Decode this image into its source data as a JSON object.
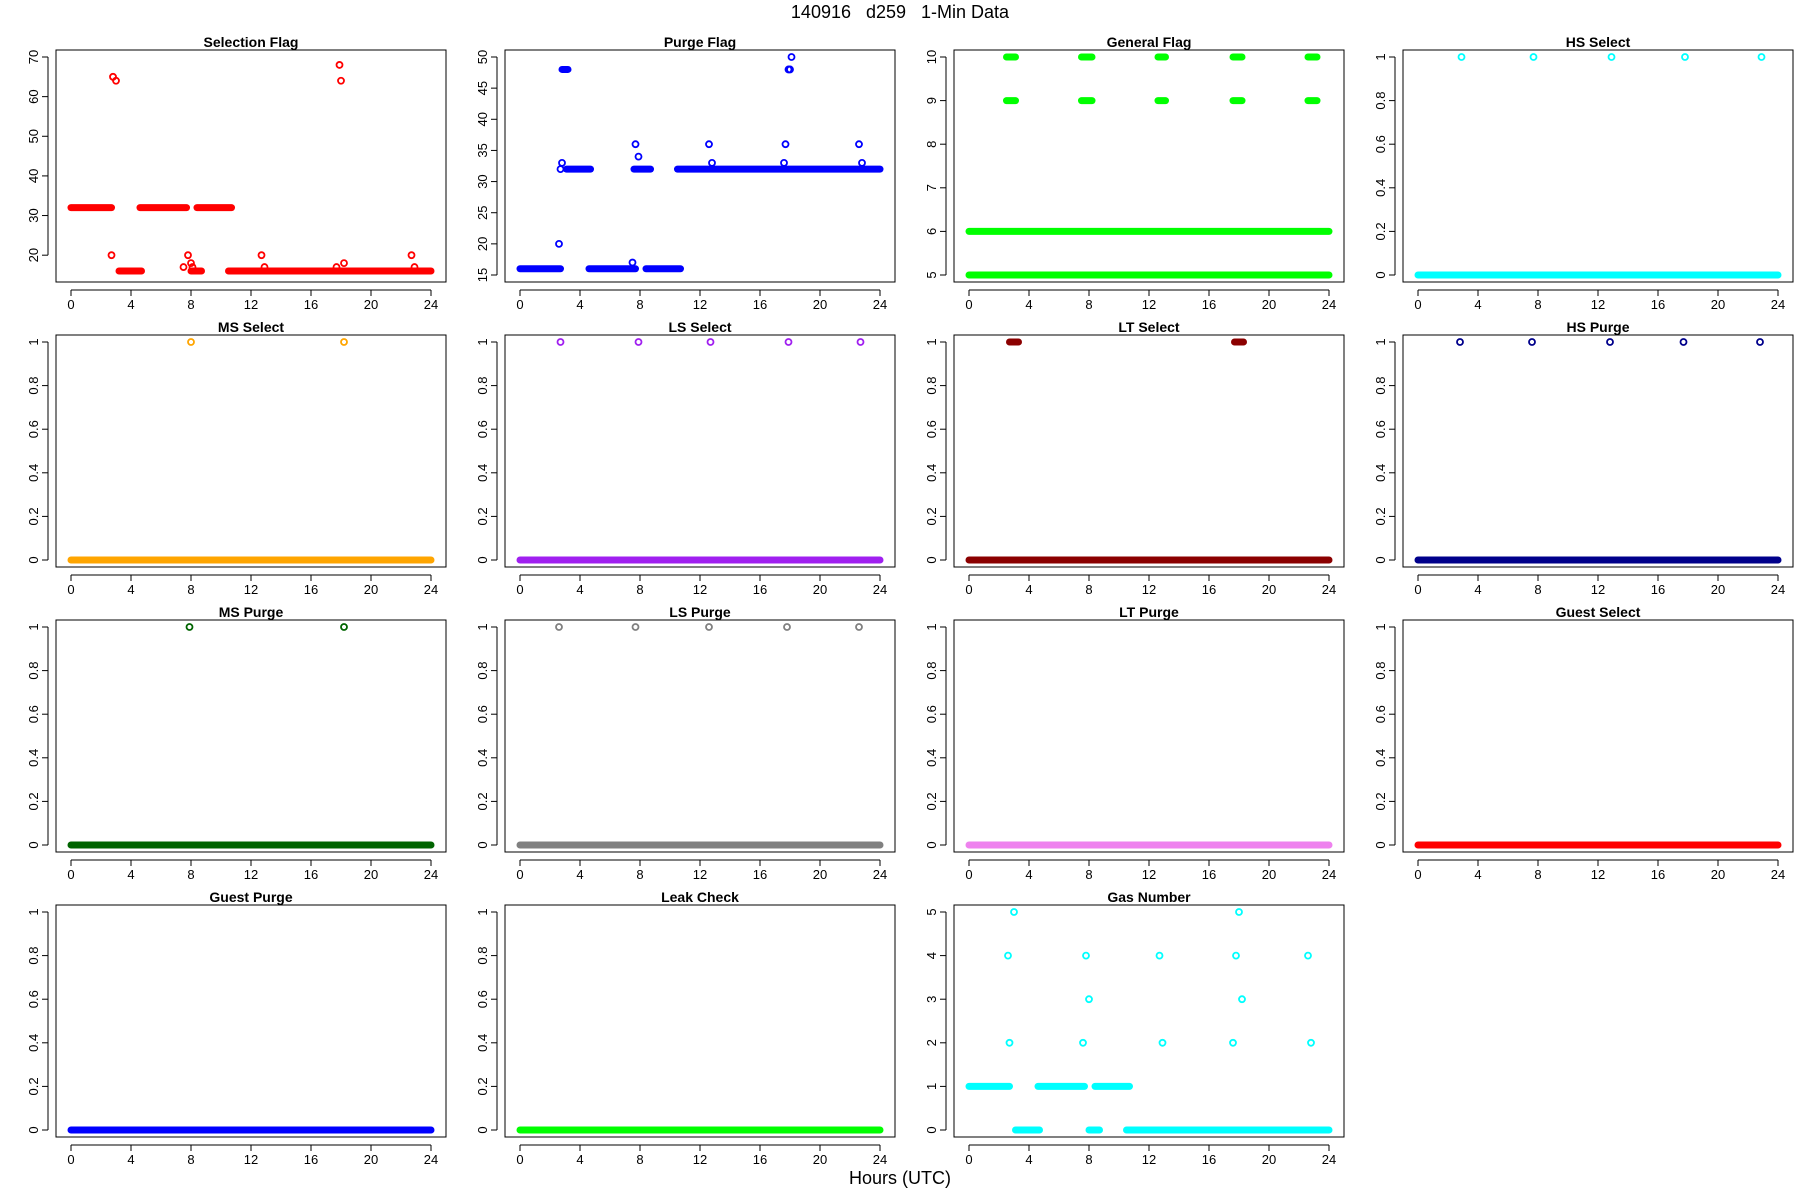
{
  "title": "140916   d259   1-Min Data",
  "xlabel": "Hours (UTC)",
  "chart_data": [
    {
      "type": "scatter",
      "title": "Selection Flag",
      "color": "#ff0000",
      "xlim": [
        0,
        24
      ],
      "ylim": [
        15,
        70
      ],
      "xticks": [
        0,
        4,
        8,
        12,
        16,
        20,
        24
      ],
      "yticks": [
        20,
        30,
        40,
        50,
        60,
        70
      ],
      "segments": [
        [
          0,
          2.7,
          32
        ],
        [
          3.2,
          4.7,
          16
        ],
        [
          4.6,
          7.7,
          32
        ],
        [
          8.0,
          8.7,
          16
        ],
        [
          8.4,
          10.7,
          32
        ],
        [
          10.5,
          24,
          16
        ]
      ],
      "points": [
        [
          2.7,
          20
        ],
        [
          2.8,
          65
        ],
        [
          3.0,
          64
        ],
        [
          7.5,
          17
        ],
        [
          7.8,
          20
        ],
        [
          8.0,
          18
        ],
        [
          8.1,
          17
        ],
        [
          12.7,
          20
        ],
        [
          12.9,
          17
        ],
        [
          17.7,
          17
        ],
        [
          17.9,
          68
        ],
        [
          18.0,
          64
        ],
        [
          18.2,
          18
        ],
        [
          22.7,
          20
        ],
        [
          22.9,
          17
        ]
      ]
    },
    {
      "type": "scatter",
      "title": "Purge Flag",
      "color": "#0000ff",
      "xlim": [
        0,
        24
      ],
      "ylim": [
        15,
        50
      ],
      "xticks": [
        0,
        4,
        8,
        12,
        16,
        20,
        24
      ],
      "yticks": [
        15,
        20,
        25,
        30,
        35,
        40,
        45,
        50
      ],
      "segments": [
        [
          0,
          2.7,
          16
        ],
        [
          2.8,
          3.2,
          48
        ],
        [
          3.1,
          4.7,
          32
        ],
        [
          4.6,
          7.7,
          16
        ],
        [
          7.6,
          8.7,
          32
        ],
        [
          8.4,
          10.7,
          16
        ],
        [
          10.5,
          24,
          32
        ]
      ],
      "points": [
        [
          2.6,
          20
        ],
        [
          2.7,
          32
        ],
        [
          2.8,
          33
        ],
        [
          7.5,
          17
        ],
        [
          7.7,
          36
        ],
        [
          7.9,
          34
        ],
        [
          12.6,
          36
        ],
        [
          12.8,
          33
        ],
        [
          17.6,
          33
        ],
        [
          17.7,
          36
        ],
        [
          17.9,
          48
        ],
        [
          18.0,
          48
        ],
        [
          18.1,
          50
        ],
        [
          22.6,
          36
        ],
        [
          22.8,
          33
        ]
      ]
    },
    {
      "type": "scatter",
      "title": "General Flag",
      "color": "#00ff00",
      "xlim": [
        0,
        24
      ],
      "ylim": [
        5,
        10
      ],
      "xticks": [
        0,
        4,
        8,
        12,
        16,
        20,
        24
      ],
      "yticks": [
        5,
        6,
        7,
        8,
        9,
        10
      ],
      "segments": [
        [
          0,
          24,
          5
        ],
        [
          0,
          24,
          6
        ],
        [
          2.5,
          3.1,
          9
        ],
        [
          2.5,
          3.1,
          10
        ],
        [
          7.5,
          8.2,
          9
        ],
        [
          7.5,
          8.2,
          10
        ],
        [
          12.6,
          13.1,
          9
        ],
        [
          12.6,
          13.1,
          10
        ],
        [
          17.6,
          18.2,
          9
        ],
        [
          17.6,
          18.2,
          10
        ],
        [
          22.6,
          23.2,
          9
        ],
        [
          22.6,
          23.2,
          10
        ]
      ],
      "points": []
    },
    {
      "type": "scatter",
      "title": "HS Select",
      "color": "#00ffff",
      "xlim": [
        0,
        24
      ],
      "ylim": [
        0,
        1
      ],
      "xticks": [
        0,
        4,
        8,
        12,
        16,
        20,
        24
      ],
      "yticks": [
        0,
        0.2,
        0.4,
        0.6,
        0.8,
        1.0
      ],
      "segments": [
        [
          0,
          24,
          0
        ]
      ],
      "points": [
        [
          2.9,
          1
        ],
        [
          7.7,
          1
        ],
        [
          12.9,
          1
        ],
        [
          17.8,
          1
        ],
        [
          22.9,
          1
        ]
      ]
    },
    {
      "type": "scatter",
      "title": "MS Select",
      "color": "#ffa500",
      "xlim": [
        0,
        24
      ],
      "ylim": [
        0,
        1
      ],
      "xticks": [
        0,
        4,
        8,
        12,
        16,
        20,
        24
      ],
      "yticks": [
        0,
        0.2,
        0.4,
        0.6,
        0.8,
        1.0
      ],
      "segments": [
        [
          0,
          24,
          0
        ]
      ],
      "points": [
        [
          8.0,
          1
        ],
        [
          18.2,
          1
        ]
      ]
    },
    {
      "type": "scatter",
      "title": "LS Select",
      "color": "#a020f0",
      "xlim": [
        0,
        24
      ],
      "ylim": [
        0,
        1
      ],
      "xticks": [
        0,
        4,
        8,
        12,
        16,
        20,
        24
      ],
      "yticks": [
        0,
        0.2,
        0.4,
        0.6,
        0.8,
        1.0
      ],
      "segments": [
        [
          0,
          24,
          0
        ]
      ],
      "points": [
        [
          2.7,
          1
        ],
        [
          7.9,
          1
        ],
        [
          12.7,
          1
        ],
        [
          17.9,
          1
        ],
        [
          22.7,
          1
        ]
      ]
    },
    {
      "type": "scatter",
      "title": "LT Select",
      "color": "#8b0000",
      "xlim": [
        0,
        24
      ],
      "ylim": [
        0,
        1
      ],
      "xticks": [
        0,
        4,
        8,
        12,
        16,
        20,
        24
      ],
      "yticks": [
        0,
        0.2,
        0.4,
        0.6,
        0.8,
        1.0
      ],
      "segments": [
        [
          0,
          24,
          0
        ],
        [
          2.7,
          3.3,
          1
        ],
        [
          17.7,
          18.3,
          1
        ]
      ],
      "points": []
    },
    {
      "type": "scatter",
      "title": "HS Purge",
      "color": "#00008b",
      "xlim": [
        0,
        24
      ],
      "ylim": [
        0,
        1
      ],
      "xticks": [
        0,
        4,
        8,
        12,
        16,
        20,
        24
      ],
      "yticks": [
        0,
        0.2,
        0.4,
        0.6,
        0.8,
        1.0
      ],
      "segments": [
        [
          0,
          24,
          0
        ]
      ],
      "points": [
        [
          2.8,
          1
        ],
        [
          7.6,
          1
        ],
        [
          12.8,
          1
        ],
        [
          17.7,
          1
        ],
        [
          22.8,
          1
        ]
      ]
    },
    {
      "type": "scatter",
      "title": "MS Purge",
      "color": "#006400",
      "xlim": [
        0,
        24
      ],
      "ylim": [
        0,
        1
      ],
      "xticks": [
        0,
        4,
        8,
        12,
        16,
        20,
        24
      ],
      "yticks": [
        0,
        0.2,
        0.4,
        0.6,
        0.8,
        1.0
      ],
      "segments": [
        [
          0,
          24,
          0
        ]
      ],
      "points": [
        [
          7.9,
          1
        ],
        [
          18.2,
          1
        ]
      ]
    },
    {
      "type": "scatter",
      "title": "LS Purge",
      "color": "#808080",
      "xlim": [
        0,
        24
      ],
      "ylim": [
        0,
        1
      ],
      "xticks": [
        0,
        4,
        8,
        12,
        16,
        20,
        24
      ],
      "yticks": [
        0,
        0.2,
        0.4,
        0.6,
        0.8,
        1.0
      ],
      "segments": [
        [
          0,
          24,
          0
        ]
      ],
      "points": [
        [
          2.6,
          1
        ],
        [
          7.7,
          1
        ],
        [
          12.6,
          1
        ],
        [
          17.8,
          1
        ],
        [
          22.6,
          1
        ]
      ]
    },
    {
      "type": "scatter",
      "title": "LT Purge",
      "color": "#ee82ee",
      "xlim": [
        0,
        24
      ],
      "ylim": [
        0,
        1
      ],
      "xticks": [
        0,
        4,
        8,
        12,
        16,
        20,
        24
      ],
      "yticks": [
        0,
        0.2,
        0.4,
        0.6,
        0.8,
        1.0
      ],
      "segments": [
        [
          0,
          24,
          0
        ]
      ],
      "points": []
    },
    {
      "type": "scatter",
      "title": "Guest Select",
      "color": "#ff0000",
      "xlim": [
        0,
        24
      ],
      "ylim": [
        0,
        1
      ],
      "xticks": [
        0,
        4,
        8,
        12,
        16,
        20,
        24
      ],
      "yticks": [
        0,
        0.2,
        0.4,
        0.6,
        0.8,
        1.0
      ],
      "segments": [
        [
          0,
          24,
          0
        ]
      ],
      "points": []
    },
    {
      "type": "scatter",
      "title": "Guest Purge",
      "color": "#0000ff",
      "xlim": [
        0,
        24
      ],
      "ylim": [
        0,
        1
      ],
      "xticks": [
        0,
        4,
        8,
        12,
        16,
        20,
        24
      ],
      "yticks": [
        0,
        0.2,
        0.4,
        0.6,
        0.8,
        1.0
      ],
      "segments": [
        [
          0,
          24,
          0
        ]
      ],
      "points": []
    },
    {
      "type": "scatter",
      "title": "Leak Check",
      "color": "#00ff00",
      "xlim": [
        0,
        24
      ],
      "ylim": [
        0,
        1
      ],
      "xticks": [
        0,
        4,
        8,
        12,
        16,
        20,
        24
      ],
      "yticks": [
        0,
        0.2,
        0.4,
        0.6,
        0.8,
        1.0
      ],
      "segments": [
        [
          0,
          24,
          0
        ]
      ],
      "points": []
    },
    {
      "type": "scatter",
      "title": "Gas Number",
      "color": "#00ffff",
      "xlim": [
        0,
        24
      ],
      "ylim": [
        0,
        5
      ],
      "xticks": [
        0,
        4,
        8,
        12,
        16,
        20,
        24
      ],
      "yticks": [
        0,
        1,
        2,
        3,
        4,
        5
      ],
      "segments": [
        [
          0,
          2.7,
          1
        ],
        [
          3.1,
          4.7,
          0
        ],
        [
          4.6,
          7.7,
          1
        ],
        [
          8.0,
          8.7,
          0
        ],
        [
          8.4,
          10.7,
          1
        ],
        [
          10.5,
          24,
          0
        ]
      ],
      "points": [
        [
          2.7,
          2
        ],
        [
          2.6,
          4
        ],
        [
          3.0,
          5
        ],
        [
          7.6,
          2
        ],
        [
          7.8,
          4
        ],
        [
          8.0,
          3
        ],
        [
          12.7,
          4
        ],
        [
          12.9,
          2
        ],
        [
          17.6,
          2
        ],
        [
          17.8,
          4
        ],
        [
          18.0,
          5
        ],
        [
          18.2,
          3
        ],
        [
          22.6,
          4
        ],
        [
          22.8,
          2
        ]
      ]
    }
  ]
}
